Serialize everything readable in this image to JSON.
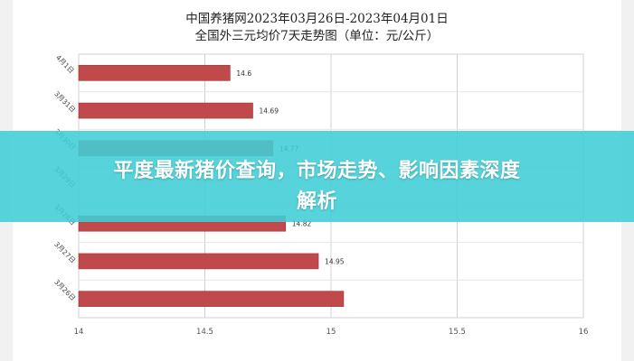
{
  "chart_data": {
    "type": "bar",
    "orientation": "horizontal",
    "title": "中国养猪网2023年03月26日-2023年04月01日",
    "subtitle": "全国外三元均价7天走势图（单位：元/公斤）",
    "categories": [
      "4月1日",
      "3月31日",
      "3月30日",
      "3月29日",
      "3月28日",
      "3月27日",
      "3月26日"
    ],
    "values": [
      14.6,
      14.69,
      14.77,
      null,
      14.82,
      14.95,
      15.05
    ],
    "value_labels": [
      "14.6",
      "14.69",
      "14.77",
      "",
      "14.82",
      "14.95",
      ""
    ],
    "xlim": [
      14,
      16
    ],
    "x_ticks": [
      "14",
      "14.5",
      "15",
      "15.5",
      "16"
    ],
    "grid": true,
    "legend": "none",
    "bar_color": "#c0494b"
  },
  "banner": {
    "line1": "平度最新猪价查询，市场走势、影响因素深度",
    "line2": "解析",
    "color": "#40ced6"
  }
}
